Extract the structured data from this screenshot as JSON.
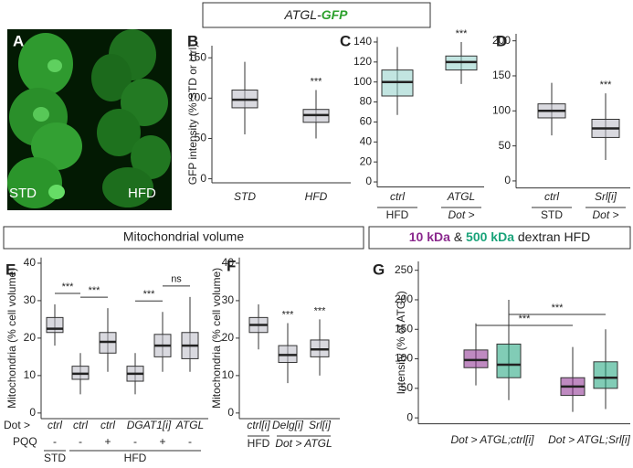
{
  "headers": {
    "top": [
      "ATGL-",
      "GFP"
    ],
    "mito": "Mitochondrial volume",
    "dextran_join": "&",
    "dextran_tail": "dextran HFD"
  },
  "panel_a": {
    "letter": "A",
    "labels": [
      "STD",
      "HFD"
    ]
  },
  "chart_data": [
    {
      "type": "box",
      "panel": "B",
      "ylabel": "GFP intensity (% STD or ctrl)",
      "ylim": [
        -5,
        165
      ],
      "yticks": [
        0,
        50,
        100,
        150
      ],
      "categories": [
        "STD",
        "HFD"
      ],
      "series": [
        {
          "color": "#b9b9c4",
          "boxes": [
            {
              "low": 55,
              "q1": 88,
              "median": 98,
              "q3": 110,
              "high": 145
            },
            {
              "low": 50,
              "q1": 70,
              "median": 79,
              "q3": 86,
              "high": 110
            }
          ]
        }
      ],
      "annotations": [
        {
          "text": "***",
          "at": 1
        }
      ]
    },
    {
      "type": "box",
      "panel": "C",
      "ylim": [
        -5,
        145
      ],
      "yticks": [
        0,
        20,
        40,
        60,
        80,
        100,
        120,
        140
      ],
      "categories": [
        "ctrl",
        "ATGL"
      ],
      "sublabels": [
        "HFD",
        "Dot >"
      ],
      "series": [
        {
          "color": "#8fcfc9",
          "boxes": [
            {
              "low": 67,
              "q1": 86,
              "median": 100,
              "q3": 112,
              "high": 135
            },
            {
              "low": 98,
              "q1": 112,
              "median": 120,
              "q3": 126,
              "high": 140
            }
          ]
        }
      ],
      "annotations": [
        {
          "text": "***",
          "at": 1
        }
      ]
    },
    {
      "type": "box",
      "panel": "D",
      "ylim": [
        -10,
        210
      ],
      "yticks": [
        0,
        50,
        100,
        150,
        200
      ],
      "categories": [
        "ctrl",
        "Srl[i]"
      ],
      "sublabels": [
        "STD",
        "Dot >"
      ],
      "series": [
        {
          "color": "#b9b9c4",
          "boxes": [
            {
              "low": 65,
              "q1": 90,
              "median": 100,
              "q3": 110,
              "high": 140
            },
            {
              "low": 30,
              "q1": 62,
              "median": 75,
              "q3": 88,
              "high": 125
            }
          ]
        }
      ],
      "annotations": [
        {
          "text": "***",
          "at": 1
        }
      ]
    },
    {
      "type": "box",
      "panel": "E",
      "ylabel": "Mitochondria (% cell volume)",
      "ylim": [
        -1.5,
        41.5
      ],
      "yticks": [
        0,
        10,
        20,
        30,
        40
      ],
      "row_prefix": "Dot >",
      "categories": [
        "ctrl",
        "ctrl",
        "ctrl",
        "DGAT1[i]",
        null,
        "ATGL"
      ],
      "pqq_label": "PQQ",
      "pqq": [
        "-",
        "-",
        "+",
        "-",
        "+",
        "-"
      ],
      "groups": [
        "STD",
        "HFD",
        null,
        null,
        null,
        null
      ],
      "series": [
        {
          "color": "#b9b9c4",
          "boxes": [
            {
              "low": 18,
              "q1": 21.5,
              "median": 22.5,
              "q3": 25.5,
              "high": 29
            },
            {
              "low": 5,
              "q1": 9,
              "median": 10.5,
              "q3": 12.5,
              "high": 16
            },
            {
              "low": 11,
              "q1": 16,
              "median": 19,
              "q3": 21.5,
              "high": 28
            },
            {
              "low": 5,
              "q1": 8.5,
              "median": 10.5,
              "q3": 12.5,
              "high": 16
            },
            {
              "low": 11,
              "q1": 15,
              "median": 18,
              "q3": 21,
              "high": 27
            },
            {
              "low": 11,
              "q1": 14.5,
              "median": 18,
              "q3": 21.5,
              "high": 31
            }
          ]
        }
      ],
      "annotations": [
        {
          "text": "***",
          "from": 0,
          "to": 1
        },
        {
          "text": "***",
          "from": 1,
          "to": 2
        },
        {
          "text": "***",
          "from": 3,
          "to": 4
        },
        {
          "text": "ns",
          "from": 4,
          "to": 5
        }
      ]
    },
    {
      "type": "box",
      "panel": "F",
      "ylabel": "Mitochondria (% cell volume)",
      "ylim": [
        -1.5,
        41.5
      ],
      "yticks": [
        0,
        10,
        20,
        30,
        40
      ],
      "categories": [
        "ctrl[i]",
        "Delg[i]",
        "Srl[i]"
      ],
      "groups": [
        "HFD",
        "Dot > ATGL",
        null
      ],
      "series": [
        {
          "color": "#b9b9c4",
          "boxes": [
            {
              "low": 17,
              "q1": 21.5,
              "median": 23.5,
              "q3": 25.5,
              "high": 29
            },
            {
              "low": 8,
              "q1": 13.5,
              "median": 15.5,
              "q3": 18,
              "high": 24
            },
            {
              "low": 10,
              "q1": 15,
              "median": 17,
              "q3": 19.5,
              "high": 25
            }
          ]
        }
      ],
      "annotations": [
        {
          "text": "***",
          "at": 1
        },
        {
          "text": "***",
          "at": 2
        }
      ]
    },
    {
      "type": "box",
      "panel": "G",
      "ylabel": "Intensity (% of ATGL)",
      "ylim": [
        -10,
        265
      ],
      "yticks": [
        0,
        50,
        100,
        150,
        200,
        250
      ],
      "categories": [
        "Dot > ATGL;ctrl[i]",
        "Dot > ATGL;Srl[i]"
      ],
      "series": [
        {
          "name": "10 kDa",
          "color": "#8b2a8e",
          "boxes": [
            {
              "low": 55,
              "q1": 85,
              "median": 98,
              "q3": 115,
              "high": 160
            },
            {
              "low": 10,
              "q1": 38,
              "median": 53,
              "q3": 68,
              "high": 120
            }
          ]
        },
        {
          "name": "500 kDa",
          "color": "#1aa37a",
          "boxes": [
            {
              "low": 30,
              "q1": 68,
              "median": 90,
              "q3": 125,
              "high": 200
            },
            {
              "low": 15,
              "q1": 50,
              "median": 68,
              "q3": 95,
              "high": 150
            }
          ]
        }
      ],
      "annotations": [
        {
          "text": "***",
          "series": 1
        },
        {
          "text": "***",
          "series": 0
        }
      ]
    }
  ]
}
